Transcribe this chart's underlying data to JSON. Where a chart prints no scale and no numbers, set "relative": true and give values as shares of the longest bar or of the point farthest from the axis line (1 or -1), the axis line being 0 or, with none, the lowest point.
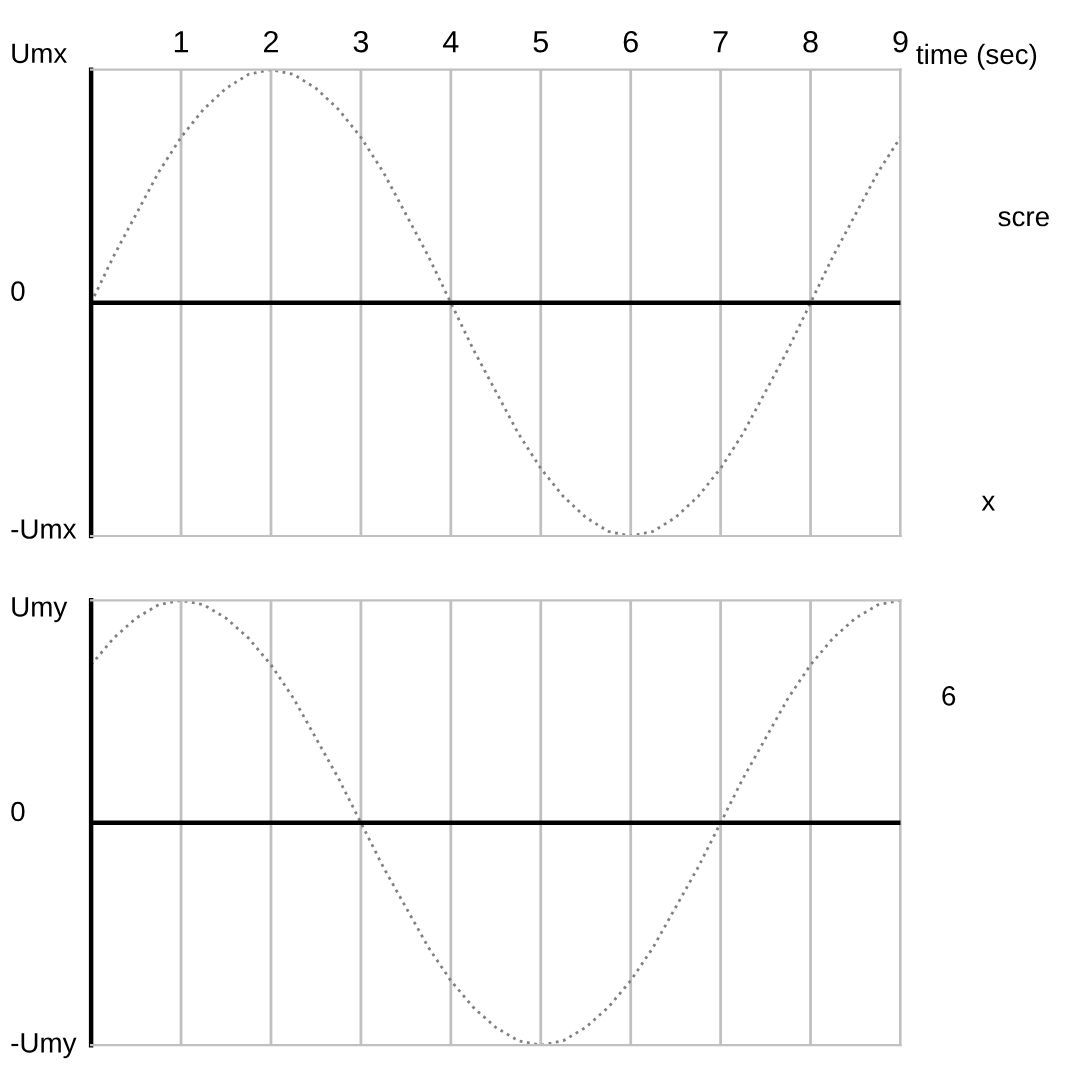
{
  "chart_data": [
    {
      "type": "line",
      "xlabel": "time (sec)",
      "x": [
        0,
        0.25,
        0.5,
        0.75,
        1,
        1.25,
        1.5,
        1.75,
        2,
        2.25,
        2.5,
        2.75,
        3,
        3.25,
        3.5,
        3.75,
        4,
        4.25,
        4.5,
        4.75,
        5,
        5.25,
        5.5,
        5.75,
        6,
        6.25,
        6.5,
        6.75,
        7,
        7.25,
        7.5,
        7.75,
        8,
        8.25,
        8.5,
        8.75,
        9
      ],
      "series": [
        {
          "color": "#808080",
          "values": [
            0,
            0.2,
            0.38,
            0.56,
            0.71,
            0.83,
            0.92,
            0.98,
            1,
            0.98,
            0.92,
            0.83,
            0.71,
            0.56,
            0.38,
            0.2,
            0,
            -0.2,
            -0.38,
            -0.56,
            -0.71,
            -0.83,
            -0.92,
            -0.98,
            -1,
            -0.98,
            -0.92,
            -0.83,
            -0.71,
            -0.56,
            -0.38,
            -0.2,
            0,
            0.2,
            0.38,
            0.56,
            0.71
          ]
        }
      ],
      "line_style": "dotted",
      "marker": "none",
      "xlim": [
        0,
        9
      ],
      "xticks": [
        1,
        2,
        3,
        4,
        5,
        6,
        7,
        8,
        9
      ],
      "relative": true,
      "grid": "x",
      "legend": false,
      "ref_lines": [
        {
          "axis": "y",
          "value": 0,
          "color": "#000000"
        }
      ],
      "annotations": [
        "Umx",
        "0",
        "-Umx",
        "scre",
        "x"
      ]
    },
    {
      "type": "line",
      "x": [
        0,
        0.25,
        0.5,
        0.75,
        1,
        1.25,
        1.5,
        1.75,
        2,
        2.25,
        2.5,
        2.75,
        3,
        3.25,
        3.5,
        3.75,
        4,
        4.25,
        4.5,
        4.75,
        5,
        5.25,
        5.5,
        5.75,
        6,
        6.25,
        6.5,
        6.75,
        7,
        7.25,
        7.5,
        7.75,
        8,
        8.25,
        8.5,
        8.75,
        9
      ],
      "series": [
        {
          "color": "#808080",
          "values": [
            0.71,
            0.83,
            0.92,
            0.98,
            1,
            0.98,
            0.92,
            0.83,
            0.71,
            0.56,
            0.38,
            0.2,
            0,
            -0.2,
            -0.38,
            -0.56,
            -0.71,
            -0.83,
            -0.92,
            -0.98,
            -1,
            -0.98,
            -0.92,
            -0.83,
            -0.71,
            -0.56,
            -0.38,
            -0.2,
            0,
            0.2,
            0.38,
            0.56,
            0.71,
            0.83,
            0.92,
            0.98,
            1
          ]
        }
      ],
      "line_style": "dotted",
      "marker": "none",
      "xlim": [
        0,
        9
      ],
      "xticks": [
        1,
        2,
        3,
        4,
        5,
        6,
        7,
        8,
        9
      ],
      "relative": true,
      "grid": "x",
      "legend": false,
      "tick_labels": false,
      "ref_lines": [
        {
          "axis": "y",
          "value": 0,
          "color": "#000000"
        }
      ],
      "annotations": [
        "Umy",
        "0",
        "-Umy",
        "6"
      ]
    }
  ]
}
